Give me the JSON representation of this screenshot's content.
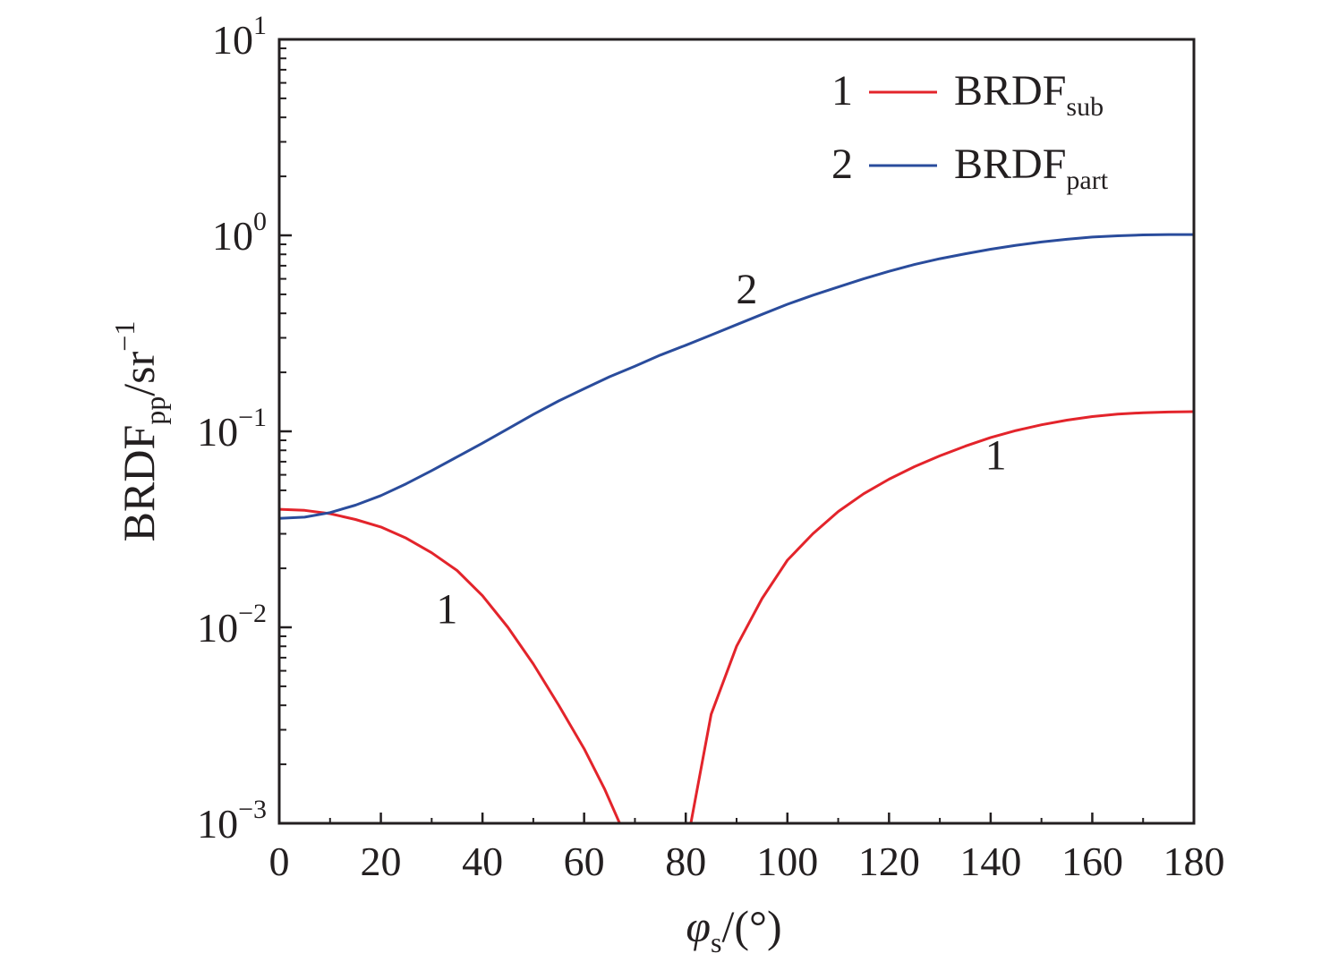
{
  "chart_data": {
    "type": "line",
    "xlabel": {
      "main": "φ",
      "sub": "s",
      "suffix": "/(°)"
    },
    "ylabel": {
      "main": "BRDF",
      "sub": "pp",
      "mid": "/sr",
      "sup": "−1"
    },
    "xlim": [
      0,
      180
    ],
    "ylim": [
      0.001,
      10
    ],
    "yscale": "log",
    "grid": false,
    "legend_position": "top-right",
    "x_ticks": [
      "0",
      "20",
      "40",
      "60",
      "80",
      "100",
      "120",
      "140",
      "160",
      "180"
    ],
    "y_ticks": [
      {
        "base": "10",
        "exp": "1"
      },
      {
        "base": "10",
        "exp": "0"
      },
      {
        "base": "10",
        "exp": "−1"
      },
      {
        "base": "10",
        "exp": "−2"
      },
      {
        "base": "10",
        "exp": "−3"
      }
    ],
    "series": [
      {
        "name": "BRDF",
        "name_sub": "sub",
        "legend_number": "1",
        "color": "#e3242b",
        "curve_labels": [
          {
            "text": "1",
            "x": 33,
            "y": 0.0105
          },
          {
            "text": "1",
            "x": 141,
            "y": 0.064
          }
        ],
        "segments": [
          [
            [
              0,
              0.04
            ],
            [
              5,
              0.0395
            ],
            [
              10,
              0.038
            ],
            [
              15,
              0.0355
            ],
            [
              20,
              0.0325
            ],
            [
              25,
              0.0285
            ],
            [
              30,
              0.024
            ],
            [
              35,
              0.0195
            ],
            [
              40,
              0.0145
            ],
            [
              45,
              0.01
            ],
            [
              50,
              0.0065
            ],
            [
              55,
              0.004
            ],
            [
              60,
              0.0024
            ],
            [
              64,
              0.0015
            ],
            [
              67,
              0.001
            ]
          ],
          [
            [
              81,
              0.001
            ],
            [
              85,
              0.0036
            ],
            [
              90,
              0.008
            ],
            [
              95,
              0.014
            ],
            [
              100,
              0.022
            ],
            [
              105,
              0.03
            ],
            [
              110,
              0.039
            ],
            [
              115,
              0.048
            ],
            [
              120,
              0.057
            ],
            [
              125,
              0.066
            ],
            [
              130,
              0.075
            ],
            [
              135,
              0.084
            ],
            [
              140,
              0.093
            ],
            [
              145,
              0.101
            ],
            [
              150,
              0.108
            ],
            [
              155,
              0.114
            ],
            [
              160,
              0.119
            ],
            [
              165,
              0.1225
            ],
            [
              170,
              0.1245
            ],
            [
              175,
              0.1255
            ],
            [
              180,
              0.126
            ]
          ]
        ]
      },
      {
        "name": "BRDF",
        "name_sub": "part",
        "legend_number": "2",
        "color": "#2a4c9c",
        "curve_labels": [
          {
            "text": "2",
            "x": 92,
            "y": 0.45
          }
        ],
        "segments": [
          [
            [
              0,
              0.036
            ],
            [
              5,
              0.0365
            ],
            [
              10,
              0.0385
            ],
            [
              15,
              0.042
            ],
            [
              20,
              0.047
            ],
            [
              25,
              0.054
            ],
            [
              30,
              0.063
            ],
            [
              35,
              0.074
            ],
            [
              40,
              0.087
            ],
            [
              45,
              0.103
            ],
            [
              50,
              0.122
            ],
            [
              55,
              0.143
            ],
            [
              60,
              0.165
            ],
            [
              65,
              0.19
            ],
            [
              70,
              0.215
            ],
            [
              75,
              0.245
            ],
            [
              80,
              0.275
            ],
            [
              85,
              0.31
            ],
            [
              90,
              0.35
            ],
            [
              95,
              0.395
            ],
            [
              100,
              0.445
            ],
            [
              105,
              0.495
            ],
            [
              110,
              0.545
            ],
            [
              115,
              0.6
            ],
            [
              120,
              0.655
            ],
            [
              125,
              0.71
            ],
            [
              130,
              0.76
            ],
            [
              135,
              0.805
            ],
            [
              140,
              0.85
            ],
            [
              145,
              0.89
            ],
            [
              150,
              0.925
            ],
            [
              155,
              0.955
            ],
            [
              160,
              0.98
            ],
            [
              165,
              0.995
            ],
            [
              170,
              1.005
            ],
            [
              175,
              1.01
            ],
            [
              180,
              1.01
            ]
          ]
        ]
      }
    ]
  }
}
